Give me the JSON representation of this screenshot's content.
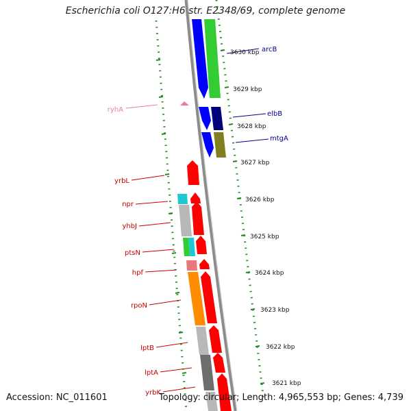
{
  "title": "Escherichia coli O127:H6 str. E2348/69, complete genome",
  "accession": "Accession: NC_011601",
  "summary": "Topology: circular; Length: 4,965,553 bp; Genes: 4,739",
  "ticks": [
    "3630 kbp",
    "3629 kbp",
    "3628 kbp",
    "3627 kbp",
    "3626 kbp",
    "3625 kbp",
    "3624 kbp",
    "3623 kbp",
    "3622 kbp",
    "3621 kbp"
  ],
  "gene_labels": [
    "arcB",
    "elbB",
    "mtgA",
    "ryhA",
    "yrbL",
    "npr",
    "yhbJ",
    "ptsN",
    "hpf",
    "rpoN",
    "lptB",
    "lptA",
    "yrbK"
  ],
  "colors": {
    "forward_gene": "#0000ff",
    "reverse_gene": "#ff0000",
    "tick_dots": "#228b22",
    "backbone": "#8c8c8c",
    "label_blue": "#00008b",
    "label_red": "#cc0000",
    "label_pink": "#e87ba8",
    "cds_green": "#33cc33",
    "cds_orange": "#ff8c00",
    "cds_grey": "#b8b8b8",
    "cds_cyan": "#1ec8d0",
    "cds_navy": "#00007a",
    "cds_olive": "#808020",
    "cds_salmon": "#e8787a",
    "cds_dark": "#6e6e6e"
  }
}
